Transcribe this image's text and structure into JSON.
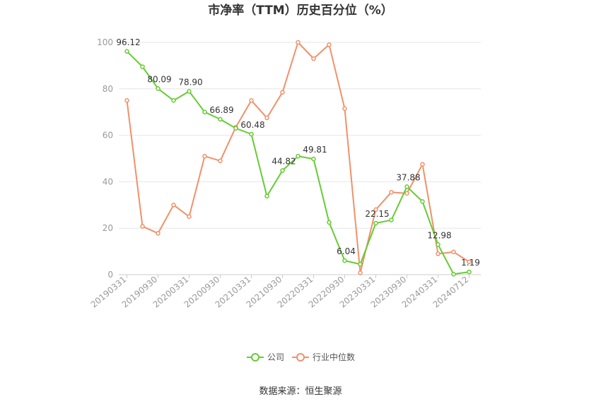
{
  "chart_data": {
    "type": "line",
    "title": "市净率（TTM）历史百分位（%）",
    "ylim": [
      0,
      100
    ],
    "yticks": [
      0,
      20,
      40,
      60,
      80,
      100
    ],
    "grid": true,
    "legend_position": "bottom",
    "x": [
      "20190331",
      "20190630",
      "20190930",
      "20191231",
      "20200331",
      "20200630",
      "20200930",
      "20201231",
      "20210331",
      "20210630",
      "20210930",
      "20211231",
      "20220331",
      "20220630",
      "20220930",
      "20221231",
      "20230331",
      "20230630",
      "20230930",
      "20231231",
      "20240331",
      "20240630",
      "20240712"
    ],
    "xtick_labels": [
      "20190331",
      "20190930",
      "20200331",
      "20200930",
      "20210331",
      "20210930",
      "20220331",
      "20220930",
      "20230331",
      "20230930",
      "20240331",
      "20240712"
    ],
    "series": [
      {
        "name": "公司",
        "color": "#66cc33",
        "values": [
          96.12,
          89.5,
          80.09,
          75.0,
          78.9,
          70.0,
          66.89,
          63.0,
          60.48,
          33.8,
          44.82,
          51.0,
          49.81,
          22.5,
          6.04,
          4.5,
          22.15,
          23.5,
          37.88,
          31.5,
          12.98,
          0.2,
          1.19
        ],
        "labels": [
          "96.12",
          "",
          "80.09",
          "",
          "78.90",
          "",
          "66.89",
          "",
          "60.48",
          "",
          "44.82",
          "",
          "49.81",
          "",
          "6.04",
          "",
          "22.15",
          "",
          "37.88",
          "",
          "12.98",
          "",
          "1.19"
        ]
      },
      {
        "name": "行业中位数",
        "color": "#f0916a",
        "values": [
          75.0,
          20.8,
          17.8,
          30.0,
          25.0,
          51.0,
          49.0,
          63.5,
          75.0,
          67.5,
          78.5,
          100.0,
          93.0,
          99.0,
          71.5,
          0.8,
          28.0,
          35.5,
          35.0,
          47.5,
          9.0,
          9.8,
          5.5
        ]
      }
    ],
    "source": "数据来源：恒生聚源"
  }
}
